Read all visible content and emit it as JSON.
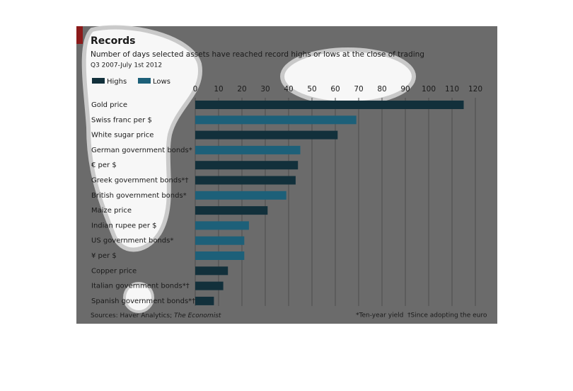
{
  "chart_data": {
    "type": "bar",
    "orientation": "horizontal",
    "title": "Records",
    "subtitle": "Number of days selected assets have reached record highs or lows at the close of trading",
    "period": "Q3 2007-July 1st 2012",
    "source": "Sources: Haver Analytics;",
    "source_publication": "The Economist",
    "notes": [
      "*Ten-year yield",
      "†Since adopting the euro"
    ],
    "categories": [
      "Gold price",
      "Swiss franc per $",
      "White sugar price",
      "German government bonds*",
      "€ per $",
      "Greek government bonds*†",
      "British government bonds*",
      "Maize price",
      "Indian rupee per $",
      "US government bonds*",
      "¥ per $",
      "Copper price",
      "Italian government bonds*†",
      "Spanish government bonds*†"
    ],
    "series": [
      {
        "name": "Highs",
        "color": "#12303b",
        "values": [
          115,
          null,
          61,
          null,
          44,
          43,
          null,
          31,
          null,
          null,
          null,
          14,
          12,
          8
        ]
      },
      {
        "name": "Lows",
        "color": "#1d6079",
        "values": [
          null,
          69,
          null,
          45,
          null,
          null,
          39,
          null,
          23,
          21,
          21,
          null,
          null,
          null
        ]
      }
    ],
    "xlim": [
      0,
      120
    ],
    "xticks": [
      0,
      10,
      20,
      30,
      40,
      50,
      60,
      70,
      80,
      90,
      100,
      110,
      120
    ],
    "grid": true
  }
}
